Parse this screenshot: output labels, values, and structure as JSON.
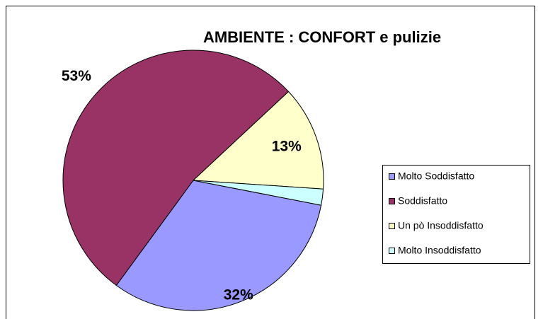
{
  "chart_data": {
    "type": "pie",
    "title": "AMBIENTE : CONFORT e pulizie",
    "categories": [
      "Molto Soddisfatto",
      "Soddisfatto",
      "Un pò  Insoddisfatto",
      "Molto  Insoddisfatto"
    ],
    "values": [
      32,
      53,
      13,
      2
    ],
    "value_labels": [
      "32%",
      "53%",
      "13%",
      null
    ],
    "colors": [
      "#9999ff",
      "#993366",
      "#ffffcc",
      "#ccffff"
    ],
    "legend": "right"
  }
}
